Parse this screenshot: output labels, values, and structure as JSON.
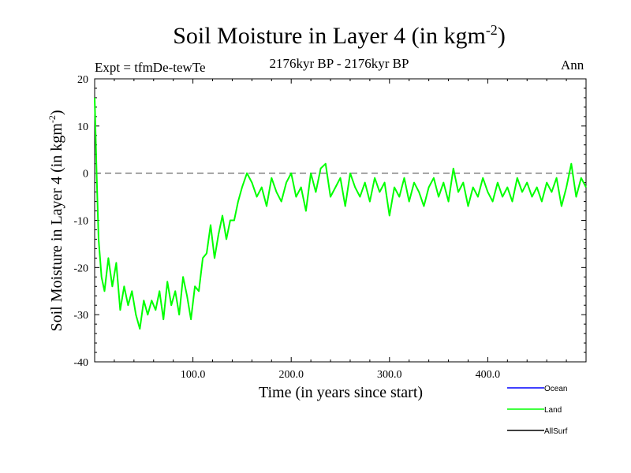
{
  "title": {
    "main": "Soil Moisture in Layer 4 (in kgm",
    "sup": "-2",
    "close": ")"
  },
  "header": {
    "expt": "Expt = tfmDe-tewTe",
    "period": "2176kyr BP - 2176kyr BP",
    "season": "Ann"
  },
  "chart_data": {
    "type": "line",
    "title": "Soil Moisture in Layer 4 (in kgm-2)",
    "xlabel": "Time (in years since start)",
    "ylabel": "Soil Moisture in Layer 4 (in kgm-2)",
    "ylabel_parts": {
      "main": "Soil Moisture in Layer 4 (in kgm",
      "sup": "-2",
      "close": ")"
    },
    "xlim": [
      0,
      500
    ],
    "ylim": [
      -40,
      20
    ],
    "x_ticks": [
      100,
      200,
      300,
      400
    ],
    "x_tick_labels": [
      "100.0",
      "200.0",
      "300.0",
      "400.0"
    ],
    "y_ticks": [
      -40,
      -30,
      -20,
      -10,
      0,
      10,
      20
    ],
    "y_tick_labels": [
      "-40",
      "-30",
      "-20",
      "-10",
      "0",
      "10",
      "20"
    ],
    "reference_line": {
      "y": 0,
      "style": "dashed"
    },
    "legend": [
      {
        "name": "Ocean",
        "color": "#0000ff"
      },
      {
        "name": "Land",
        "color": "#00ff00"
      },
      {
        "name": "AllSurf",
        "color": "#000000"
      }
    ],
    "series": [
      {
        "name": "Land",
        "color": "#00ff00",
        "x": [
          0,
          2,
          4,
          7,
          10,
          14,
          18,
          22,
          26,
          30,
          34,
          38,
          42,
          46,
          50,
          54,
          58,
          62,
          66,
          70,
          74,
          78,
          82,
          86,
          90,
          94,
          98,
          102,
          106,
          110,
          114,
          118,
          122,
          126,
          130,
          134,
          138,
          142,
          146,
          150,
          155,
          160,
          165,
          170,
          175,
          180,
          185,
          190,
          195,
          200,
          205,
          210,
          215,
          220,
          225,
          230,
          235,
          240,
          245,
          250,
          255,
          260,
          265,
          270,
          275,
          280,
          285,
          290,
          295,
          300,
          305,
          310,
          315,
          320,
          325,
          330,
          335,
          340,
          345,
          350,
          355,
          360,
          365,
          370,
          375,
          380,
          385,
          390,
          395,
          400,
          405,
          410,
          415,
          420,
          425,
          430,
          435,
          440,
          445,
          450,
          455,
          460,
          465,
          470,
          475,
          480,
          485,
          490,
          495,
          500
        ],
        "values": [
          16,
          0,
          -14,
          -22,
          -25,
          -18,
          -24,
          -19,
          -29,
          -24,
          -28,
          -25,
          -30,
          -33,
          -27,
          -30,
          -27,
          -29,
          -25,
          -31,
          -23,
          -28,
          -25,
          -30,
          -22,
          -26,
          -31,
          -24,
          -25,
          -18,
          -17,
          -11,
          -18,
          -13,
          -9,
          -14,
          -10,
          -10,
          -6,
          -3,
          0,
          -2,
          -5,
          -3,
          -7,
          -1,
          -4,
          -6,
          -2,
          0,
          -5,
          -3,
          -8,
          0,
          -4,
          1,
          2,
          -5,
          -3,
          -1,
          -7,
          0,
          -3,
          -5,
          -2,
          -6,
          -1,
          -4,
          -2,
          -9,
          -3,
          -5,
          -1,
          -6,
          -2,
          -4,
          -7,
          -3,
          -1,
          -5,
          -2,
          -6,
          1,
          -4,
          -2,
          -7,
          -3,
          -5,
          -1,
          -4,
          -6,
          -2,
          -5,
          -3,
          -6,
          -1,
          -4,
          -2,
          -5,
          -3,
          -6,
          -2,
          -4,
          -1,
          -7,
          -3,
          2,
          -5,
          -1,
          -3
        ]
      }
    ]
  }
}
